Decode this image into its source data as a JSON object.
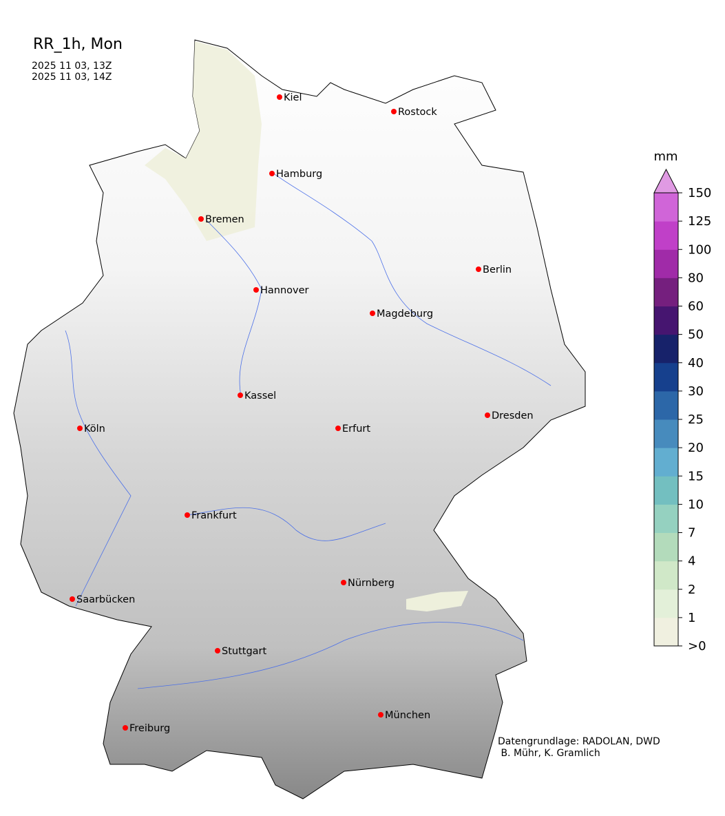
{
  "header": {
    "title": "RR_1h, Mon",
    "time_start": "2025 11 03, 13Z",
    "time_end": "2025 11 03, 14Z"
  },
  "credits": {
    "line1": "Datengrundlage: RADOLAN, DWD",
    "line2": " B. Mühr, K. Gramlich"
  },
  "colorbar": {
    "unit": "mm",
    "ticks": [
      ">0",
      "1",
      "2",
      "4",
      "7",
      "10",
      "15",
      "20",
      "25",
      "30",
      "40",
      "50",
      "60",
      "80",
      "100",
      "125",
      "150"
    ],
    "colors": [
      "#f0f0e0",
      "#e3f0d9",
      "#d0e8c8",
      "#b3dbbb",
      "#95d1c0",
      "#73bfc0",
      "#62aed0",
      "#478bbd",
      "#2c67a8",
      "#16408d",
      "#17226a",
      "#461570",
      "#751f7e",
      "#a02ba8",
      "#c040c8",
      "#d065d8"
    ],
    "extend_color": "#e09ae3"
  },
  "map": {
    "marker_color": "#ff0000",
    "river_color": "#4a6fe8",
    "cities": [
      "Kiel",
      "Rostock",
      "Hamburg",
      "Bremen",
      "Berlin",
      "Hannover",
      "Magdeburg",
      "Kassel",
      "Köln",
      "Erfurt",
      "Dresden",
      "Frankfurt",
      "Nürnberg",
      "Saarbücken",
      "Stuttgart",
      "München",
      "Freiburg"
    ]
  }
}
